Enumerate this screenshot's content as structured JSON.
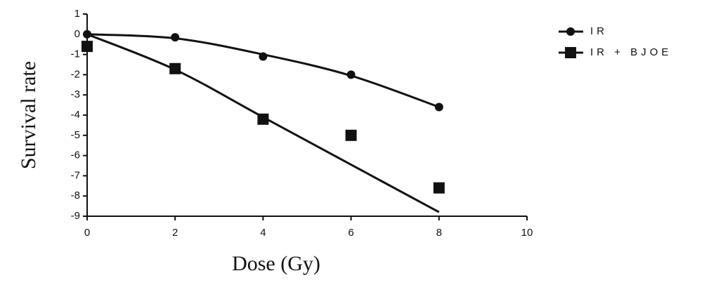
{
  "chart_data": {
    "type": "scatter",
    "x_label": "Dose (Gy)",
    "y_label": "Survival rate",
    "xlim": [
      0,
      10
    ],
    "xticks": [
      0,
      2,
      4,
      6,
      8,
      10
    ],
    "ylim": [
      -9,
      1
    ],
    "yticks": [
      -9,
      -8,
      -7,
      -6,
      -5,
      -4,
      -3,
      -2,
      -1,
      0,
      1
    ],
    "legend": "right",
    "series": [
      {
        "name": "IR",
        "color": "#111111",
        "marker": "circle",
        "x": [
          0,
          2,
          4,
          6,
          8
        ],
        "values": [
          0,
          -0.15,
          -1.1,
          -2.0,
          -3.6
        ],
        "fit_values": [
          0,
          -0.2,
          -1.0,
          -2.05,
          -3.6
        ]
      },
      {
        "name": "IR + BJOE",
        "color": "#111111",
        "marker": "square",
        "x": [
          0,
          2,
          4,
          6,
          8
        ],
        "values": [
          -0.6,
          -1.7,
          -4.2,
          -5.0,
          -7.6
        ],
        "fit_values": [
          0,
          -1.75,
          -4.1,
          -6.45,
          -8.8
        ]
      }
    ]
  }
}
